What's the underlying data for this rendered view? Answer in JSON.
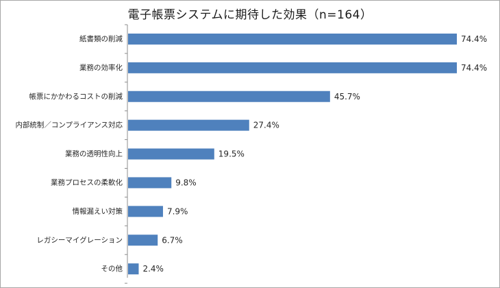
{
  "chart_data": {
    "type": "bar",
    "orientation": "horizontal",
    "title": "電子帳票システムに期待した効果（n=164）",
    "categories": [
      "紙書類の削減",
      "業務の効率化",
      "帳票にかかわるコストの削減",
      "内部統制／コンプライアンス対応",
      "業務の透明性向上",
      "業務プロセスの柔軟化",
      "情報漏えい対策",
      "レガシーマイグレーション",
      "その他"
    ],
    "values": [
      74.4,
      74.4,
      45.7,
      27.4,
      19.5,
      9.8,
      7.9,
      6.7,
      2.4
    ],
    "value_labels": [
      "74.4%",
      "74.4%",
      "45.7%",
      "27.4%",
      "19.5%",
      "9.8%",
      "7.9%",
      "6.7%",
      "2.4%"
    ],
    "xlim": [
      0,
      74.4
    ],
    "grid": false,
    "bar_color": "#4f81bd"
  }
}
